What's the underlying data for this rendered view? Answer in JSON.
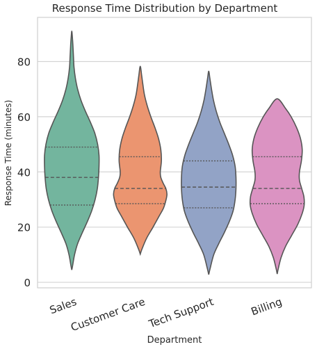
{
  "chart_data": {
    "type": "violin",
    "title": "Response Time Distribution by Department",
    "xlabel": "Department",
    "ylabel": "Response Time (minutes)",
    "ylim": [
      -2,
      96
    ],
    "yticks": [
      0,
      20,
      40,
      60,
      80
    ],
    "grid": "horizontal",
    "categories": [
      "Sales",
      "Customer Care",
      "Tech Support",
      "Billing"
    ],
    "colors": [
      "#73b59e",
      "#eb9570",
      "#92a3c6",
      "#db93c2"
    ],
    "edge_color": "#555555",
    "violins": [
      {
        "name": "Sales",
        "min": 4.5,
        "max": 91,
        "q1": 28,
        "median": 38,
        "q3": 49,
        "profile": [
          [
            4.5,
            0.0
          ],
          [
            6,
            0.03
          ],
          [
            10,
            0.1
          ],
          [
            14,
            0.21
          ],
          [
            18,
            0.38
          ],
          [
            22,
            0.56
          ],
          [
            26,
            0.72
          ],
          [
            30,
            0.84
          ],
          [
            34,
            0.92
          ],
          [
            38,
            0.96
          ],
          [
            42,
            0.98
          ],
          [
            46,
            0.98
          ],
          [
            50,
            0.93
          ],
          [
            54,
            0.83
          ],
          [
            58,
            0.67
          ],
          [
            62,
            0.49
          ],
          [
            66,
            0.33
          ],
          [
            70,
            0.21
          ],
          [
            74,
            0.13
          ],
          [
            78,
            0.08
          ],
          [
            82,
            0.06
          ],
          [
            86,
            0.04
          ],
          [
            89,
            0.02
          ],
          [
            91,
            0.0
          ]
        ]
      },
      {
        "name": "Customer Care",
        "min": 10.2,
        "max": 78.3,
        "q1": 28.5,
        "median": 34,
        "q3": 45.5,
        "profile": [
          [
            10.2,
            0.0
          ],
          [
            12,
            0.06
          ],
          [
            16,
            0.23
          ],
          [
            20,
            0.46
          ],
          [
            24,
            0.68
          ],
          [
            27,
            0.84
          ],
          [
            30,
            0.93
          ],
          [
            32,
            0.96
          ],
          [
            34,
            0.92
          ],
          [
            36,
            0.82
          ],
          [
            38,
            0.74
          ],
          [
            40,
            0.72
          ],
          [
            44,
            0.76
          ],
          [
            48,
            0.74
          ],
          [
            52,
            0.66
          ],
          [
            56,
            0.53
          ],
          [
            60,
            0.38
          ],
          [
            64,
            0.25
          ],
          [
            68,
            0.15
          ],
          [
            72,
            0.09
          ],
          [
            75,
            0.05
          ],
          [
            78.3,
            0.0
          ]
        ]
      },
      {
        "name": "Tech Support",
        "min": 2.8,
        "max": 76.5,
        "q1": 27,
        "median": 34.5,
        "q3": 44,
        "profile": [
          [
            2.8,
            0.0
          ],
          [
            5,
            0.05
          ],
          [
            10,
            0.18
          ],
          [
            14,
            0.36
          ],
          [
            18,
            0.56
          ],
          [
            22,
            0.74
          ],
          [
            26,
            0.88
          ],
          [
            30,
            0.95
          ],
          [
            34,
            0.98
          ],
          [
            38,
            0.98
          ],
          [
            42,
            0.95
          ],
          [
            46,
            0.86
          ],
          [
            50,
            0.72
          ],
          [
            54,
            0.56
          ],
          [
            58,
            0.4
          ],
          [
            62,
            0.27
          ],
          [
            66,
            0.17
          ],
          [
            70,
            0.1
          ],
          [
            74,
            0.04
          ],
          [
            76.5,
            0.0
          ]
        ]
      },
      {
        "name": "Billing",
        "min": 3,
        "max": 66.5,
        "q1": 28.5,
        "median": 34,
        "q3": 45.5,
        "profile": [
          [
            3,
            0.0
          ],
          [
            5,
            0.04
          ],
          [
            9,
            0.14
          ],
          [
            13,
            0.3
          ],
          [
            17,
            0.52
          ],
          [
            21,
            0.74
          ],
          [
            25,
            0.9
          ],
          [
            28,
            0.97
          ],
          [
            31,
            0.96
          ],
          [
            34,
            0.88
          ],
          [
            37,
            0.8
          ],
          [
            40,
            0.8
          ],
          [
            44,
            0.87
          ],
          [
            48,
            0.9
          ],
          [
            52,
            0.84
          ],
          [
            56,
            0.7
          ],
          [
            60,
            0.5
          ],
          [
            63,
            0.3
          ],
          [
            66.5,
            0.0
          ]
        ]
      }
    ]
  }
}
